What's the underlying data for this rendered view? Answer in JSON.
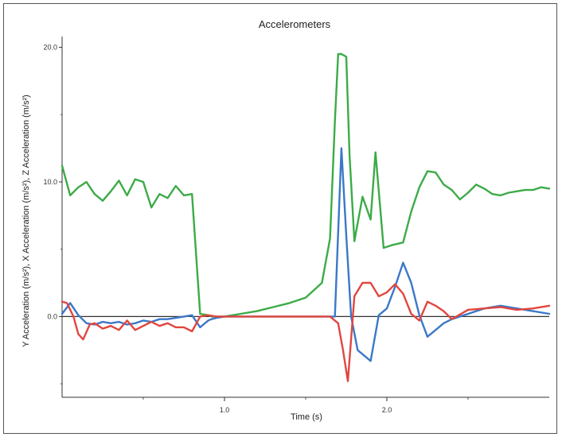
{
  "chart_data": {
    "type": "line",
    "title": "Accelerometers",
    "xlabel": "Time (s)",
    "ylabel": "Y Acceleration (m/s²), X Acceleration (m/s²), Z Acceleration (m/s²)",
    "xlim": [
      0,
      3.0
    ],
    "ylim": [
      -6,
      20.8
    ],
    "grid": false,
    "x_ticks": [
      1.0,
      2.0
    ],
    "x_tick_labels": [
      "1.0",
      "2.0"
    ],
    "y_ticks": [
      20.0,
      10.0,
      0.0
    ],
    "y_tick_labels": [
      "20.0",
      "10.0",
      "0.0"
    ],
    "zero_line": 0,
    "series": [
      {
        "color": "#3cab48",
        "x": [
          0.0,
          0.05,
          0.1,
          0.15,
          0.2,
          0.25,
          0.3,
          0.35,
          0.4,
          0.45,
          0.5,
          0.55,
          0.6,
          0.65,
          0.7,
          0.75,
          0.8,
          0.85,
          0.9,
          0.92,
          0.95,
          1.0,
          1.05,
          1.1,
          1.2,
          1.3,
          1.4,
          1.5,
          1.6,
          1.65,
          1.68,
          1.7,
          1.72,
          1.75,
          1.77,
          1.8,
          1.85,
          1.9,
          1.93,
          1.98,
          2.03,
          2.1,
          2.15,
          2.2,
          2.25,
          2.3,
          2.35,
          2.4,
          2.45,
          2.5,
          2.55,
          2.6,
          2.65,
          2.7,
          2.75,
          2.8,
          2.85,
          2.9,
          2.95,
          3.0
        ],
        "values": [
          11.2,
          9.0,
          9.6,
          10.0,
          9.1,
          8.6,
          9.3,
          10.1,
          9.0,
          10.2,
          10.0,
          8.1,
          9.1,
          8.8,
          9.7,
          9.0,
          9.1,
          0.2,
          0.1,
          0.0,
          0.0,
          0.0,
          0.1,
          0.2,
          0.4,
          0.7,
          1.0,
          1.4,
          2.5,
          5.8,
          14.5,
          19.5,
          19.5,
          19.3,
          12.0,
          5.6,
          8.9,
          7.2,
          12.2,
          5.1,
          5.3,
          5.5,
          7.8,
          9.6,
          10.8,
          10.7,
          9.8,
          9.4,
          8.7,
          9.2,
          9.8,
          9.5,
          9.1,
          9.0,
          9.2,
          9.3,
          9.4,
          9.4,
          9.6,
          9.5
        ]
      },
      {
        "color": "#3b78c8",
        "x": [
          0.0,
          0.05,
          0.1,
          0.15,
          0.2,
          0.25,
          0.3,
          0.35,
          0.4,
          0.45,
          0.5,
          0.55,
          0.6,
          0.65,
          0.7,
          0.75,
          0.8,
          0.85,
          0.9,
          0.92,
          0.95,
          1.0,
          1.1,
          1.3,
          1.5,
          1.65,
          1.68,
          1.72,
          1.75,
          1.78,
          1.82,
          1.9,
          1.95,
          2.0,
          2.05,
          2.1,
          2.15,
          2.2,
          2.25,
          2.3,
          2.35,
          2.4,
          2.5,
          2.6,
          2.7,
          2.8,
          2.9,
          3.0
        ],
        "values": [
          0.2,
          1.0,
          0.1,
          -0.5,
          -0.6,
          -0.4,
          -0.5,
          -0.4,
          -0.6,
          -0.5,
          -0.3,
          -0.4,
          -0.2,
          -0.2,
          -0.1,
          0.0,
          0.1,
          -0.8,
          -0.3,
          -0.2,
          -0.1,
          0.0,
          0.0,
          0.0,
          0.0,
          0.0,
          0.0,
          12.5,
          6.0,
          0.0,
          -2.5,
          -3.3,
          0.1,
          0.6,
          2.2,
          4.0,
          2.5,
          0.1,
          -1.5,
          -1.0,
          -0.5,
          -0.2,
          0.2,
          0.6,
          0.8,
          0.6,
          0.4,
          0.2
        ]
      },
      {
        "color": "#e1463f",
        "x": [
          0.0,
          0.03,
          0.07,
          0.1,
          0.13,
          0.17,
          0.2,
          0.25,
          0.3,
          0.35,
          0.4,
          0.45,
          0.5,
          0.55,
          0.6,
          0.65,
          0.7,
          0.75,
          0.8,
          0.85,
          0.9,
          0.95,
          1.0,
          1.1,
          1.3,
          1.5,
          1.65,
          1.7,
          1.73,
          1.76,
          1.8,
          1.85,
          1.9,
          1.95,
          2.0,
          2.05,
          2.1,
          2.15,
          2.2,
          2.25,
          2.3,
          2.35,
          2.4,
          2.5,
          2.6,
          2.7,
          2.8,
          2.9,
          3.0
        ],
        "values": [
          1.1,
          1.0,
          0.0,
          -1.3,
          -1.7,
          -0.6,
          -0.5,
          -0.9,
          -0.7,
          -1.0,
          -0.3,
          -1.0,
          -0.7,
          -0.4,
          -0.7,
          -0.5,
          -0.8,
          -0.8,
          -1.1,
          0.0,
          0.1,
          0.0,
          0.0,
          0.0,
          0.0,
          0.0,
          0.0,
          -0.5,
          -2.5,
          -4.8,
          1.5,
          2.5,
          2.5,
          1.5,
          1.8,
          2.4,
          1.7,
          0.2,
          -0.3,
          1.1,
          0.8,
          0.4,
          -0.2,
          0.5,
          0.6,
          0.7,
          0.5,
          0.6,
          0.8
        ]
      }
    ]
  }
}
